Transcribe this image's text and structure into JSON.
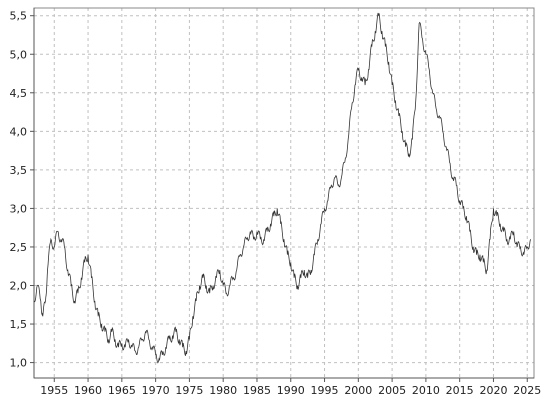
{
  "chart_data": {
    "type": "line",
    "title": "",
    "xlabel": "",
    "ylabel": "",
    "xlim": [
      1952,
      2026
    ],
    "ylim": [
      0.8,
      5.6
    ],
    "grid": true,
    "x_ticks": [
      1955,
      1960,
      1965,
      1970,
      1975,
      1980,
      1985,
      1990,
      1995,
      2000,
      2005,
      2010,
      2015,
      2020,
      2025
    ],
    "y_ticks": [
      "1,0",
      "1,5",
      "2,0",
      "2,5",
      "3,0",
      "3,5",
      "4,0",
      "4,5",
      "5,0",
      "5,5"
    ],
    "y_tick_values": [
      1.0,
      1.5,
      2.0,
      2.5,
      3.0,
      3.5,
      4.0,
      4.5,
      5.0,
      5.5
    ],
    "series": [
      {
        "color": "#333333",
        "x": [
          1952.0,
          1952.5,
          1953.0,
          1953.3,
          1953.7,
          1954.0,
          1954.5,
          1955.0,
          1955.5,
          1956.0,
          1956.5,
          1957.0,
          1957.5,
          1958.0,
          1958.5,
          1959.0,
          1959.5,
          1960.0,
          1960.5,
          1961.0,
          1961.5,
          1962.0,
          1962.5,
          1963.0,
          1963.5,
          1964.0,
          1964.5,
          1965.0,
          1965.5,
          1966.0,
          1966.5,
          1967.0,
          1967.5,
          1968.0,
          1968.5,
          1969.0,
          1969.5,
          1970.0,
          1970.5,
          1971.0,
          1971.5,
          1972.0,
          1972.5,
          1973.0,
          1973.5,
          1974.0,
          1974.5,
          1975.0,
          1975.5,
          1976.0,
          1976.5,
          1977.0,
          1977.5,
          1978.0,
          1978.5,
          1979.0,
          1979.5,
          1980.0,
          1980.5,
          1981.0,
          1981.5,
          1982.0,
          1982.5,
          1983.0,
          1983.5,
          1984.0,
          1984.5,
          1985.0,
          1985.5,
          1986.0,
          1986.5,
          1987.0,
          1987.5,
          1988.0,
          1988.5,
          1989.0,
          1989.5,
          1990.0,
          1990.5,
          1991.0,
          1991.5,
          1992.0,
          1992.5,
          1993.0,
          1993.5,
          1994.0,
          1994.5,
          1995.0,
          1995.5,
          1996.0,
          1996.5,
          1997.0,
          1997.5,
          1998.0,
          1998.5,
          1999.0,
          1999.5,
          2000.0,
          2000.5,
          2001.0,
          2001.5,
          2002.0,
          2002.5,
          2003.0,
          2003.5,
          2004.0,
          2004.5,
          2005.0,
          2005.5,
          2006.0,
          2006.5,
          2007.0,
          2007.5,
          2008.0,
          2008.5,
          2009.0,
          2009.5,
          2010.0,
          2010.5,
          2011.0,
          2011.5,
          2012.0,
          2012.5,
          2013.0,
          2013.5,
          2014.0,
          2014.5,
          2015.0,
          2015.5,
          2016.0,
          2016.5,
          2017.0,
          2017.5,
          2018.0,
          2018.5,
          2019.0,
          2019.5,
          2020.0,
          2020.5,
          2021.0,
          2021.5,
          2022.0,
          2022.5,
          2023.0,
          2023.5,
          2024.0,
          2024.5,
          2025.0,
          2025.5
        ],
        "y": [
          1.8,
          2.0,
          1.8,
          1.6,
          1.8,
          2.2,
          2.6,
          2.5,
          2.7,
          2.6,
          2.5,
          2.2,
          2.0,
          1.8,
          1.9,
          2.1,
          2.3,
          2.4,
          2.1,
          1.8,
          1.6,
          1.5,
          1.4,
          1.3,
          1.4,
          1.3,
          1.2,
          1.25,
          1.2,
          1.3,
          1.2,
          1.15,
          1.2,
          1.3,
          1.4,
          1.3,
          1.2,
          1.1,
          1.05,
          1.1,
          1.2,
          1.3,
          1.35,
          1.4,
          1.3,
          1.2,
          1.15,
          1.3,
          1.6,
          1.8,
          2.0,
          2.1,
          2.0,
          1.9,
          2.0,
          2.1,
          2.2,
          2.0,
          1.9,
          2.0,
          2.1,
          2.2,
          2.4,
          2.5,
          2.6,
          2.7,
          2.6,
          2.7,
          2.6,
          2.6,
          2.7,
          2.8,
          2.9,
          3.0,
          2.8,
          2.6,
          2.4,
          2.3,
          2.1,
          2.0,
          2.1,
          2.2,
          2.1,
          2.2,
          2.4,
          2.6,
          2.8,
          3.0,
          3.1,
          3.3,
          3.4,
          3.3,
          3.4,
          3.6,
          3.9,
          4.3,
          4.6,
          4.8,
          4.7,
          4.6,
          4.8,
          5.1,
          5.3,
          5.5,
          5.3,
          5.1,
          4.9,
          4.6,
          4.4,
          4.2,
          4.0,
          3.8,
          3.7,
          3.9,
          4.4,
          5.4,
          5.2,
          5.0,
          4.8,
          4.5,
          4.3,
          4.2,
          4.0,
          3.8,
          3.6,
          3.4,
          3.3,
          3.1,
          3.0,
          2.9,
          2.7,
          2.5,
          2.4,
          2.4,
          2.3,
          2.2,
          2.6,
          3.0,
          2.9,
          2.8,
          2.7,
          2.6,
          2.6,
          2.7,
          2.5,
          2.5,
          2.4,
          2.5,
          2.6
        ]
      }
    ]
  }
}
